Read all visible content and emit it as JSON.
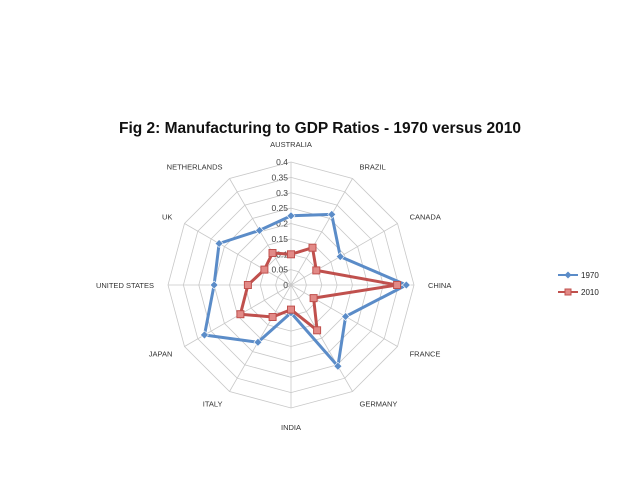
{
  "chart_data": {
    "type": "radar",
    "title": "Fig 2: Manufacturing to GDP Ratios - 1970 versus 2010",
    "categories": [
      "AUSTRALIA",
      "BRAZIL",
      "CANADA",
      "CHINA",
      "FRANCE",
      "GERMANY",
      "INDIA",
      "ITALY",
      "JAPAN",
      "UNITED STATES",
      "UK",
      "NETHERLANDS"
    ],
    "rlim": [
      0,
      0.4
    ],
    "ticks": [
      0,
      0.05,
      0.1,
      0.15,
      0.2,
      0.25,
      0.3,
      0.35,
      0.4
    ],
    "tick_labels": [
      "0",
      "0.05",
      "0.1",
      "0.15",
      "0.2",
      "0.25",
      "0.3",
      "0.35",
      "0.4"
    ],
    "grid": true,
    "legend_position": "right",
    "series": [
      {
        "name": "1970",
        "color": "#5B8CC8",
        "marker": "diamond",
        "values": [
          0.225,
          0.265,
          0.185,
          0.375,
          0.205,
          0.305,
          0.09,
          0.215,
          0.325,
          0.25,
          0.27,
          0.205
        ]
      },
      {
        "name": "2010",
        "color": "#C0504D",
        "marker": "square",
        "values": [
          0.1,
          0.14,
          0.095,
          0.345,
          0.085,
          0.17,
          0.08,
          0.12,
          0.19,
          0.14,
          0.1,
          0.12
        ]
      }
    ]
  }
}
